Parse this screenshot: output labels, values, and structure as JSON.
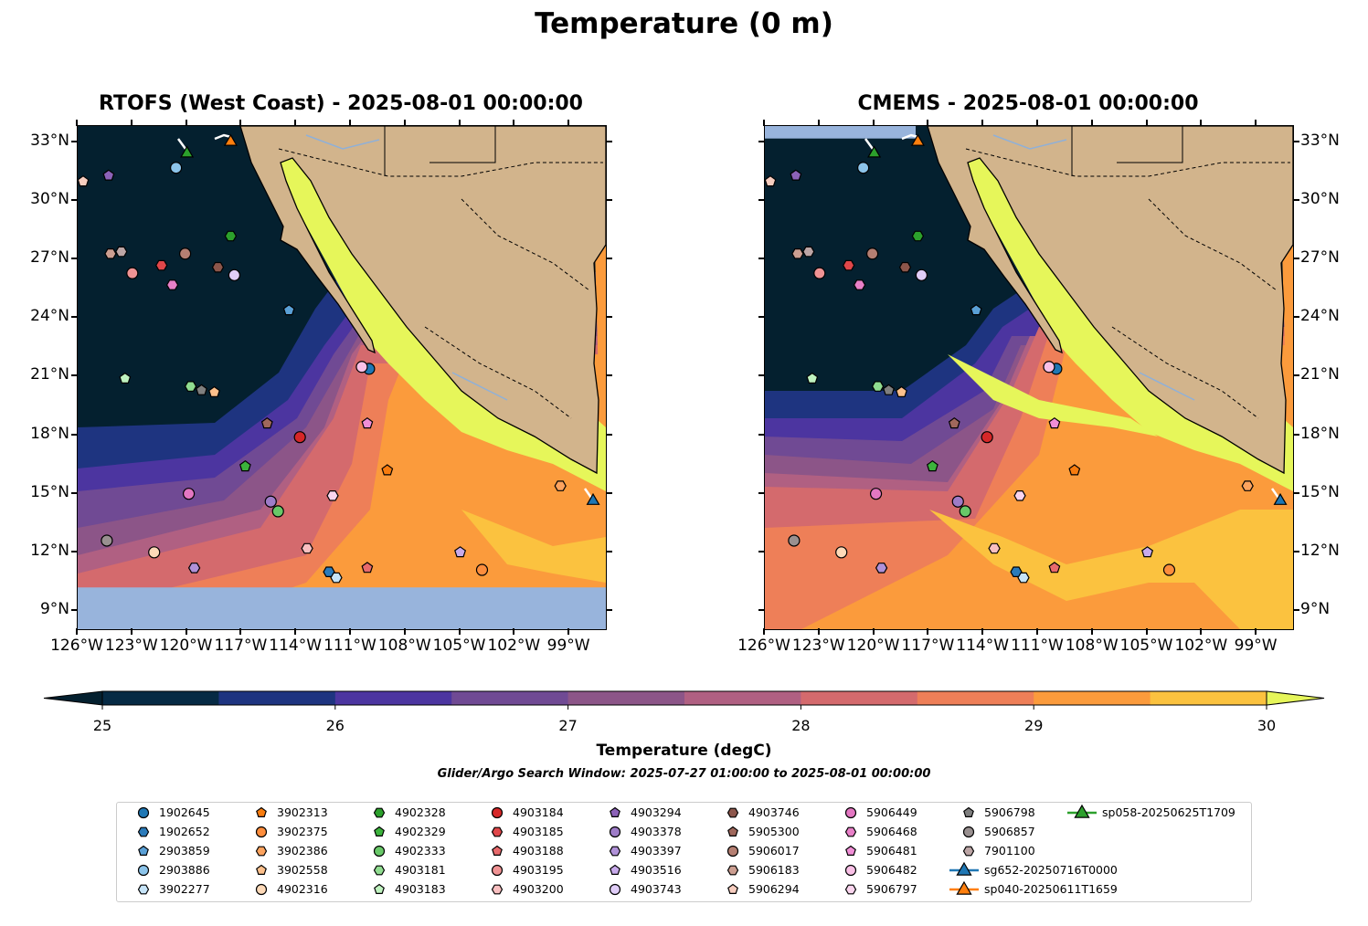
{
  "figure_title": "Temperature (0 m)",
  "chart_data": [
    {
      "type": "heatmap",
      "title": "RTOFS (West Coast) - 2025-08-01 00:00:00",
      "model": "RTOFS"
    },
    {
      "type": "heatmap",
      "title": "CMEMS - 2025-08-01 00:00:00",
      "model": "CMEMS"
    }
  ],
  "axes": {
    "lon_ticks": [
      "126°W",
      "123°W",
      "120°W",
      "117°W",
      "114°W",
      "111°W",
      "108°W",
      "105°W",
      "102°W",
      "99°W"
    ],
    "lon_values": [
      -126,
      -123,
      -120,
      -117,
      -114,
      -111,
      -108,
      -105,
      -102,
      -99
    ],
    "lat_ticks": [
      "9°N",
      "12°N",
      "15°N",
      "18°N",
      "21°N",
      "24°N",
      "27°N",
      "30°N",
      "33°N"
    ],
    "lat_values": [
      9,
      12,
      15,
      18,
      21,
      24,
      27,
      30,
      33
    ],
    "lon_range": [
      -126,
      -97
    ],
    "lat_range": [
      8.06,
      33.84
    ]
  },
  "colorbar": {
    "label": "Temperature (degC)",
    "min": 25,
    "max": 30,
    "ticks": [
      "25",
      "26",
      "27",
      "28",
      "29",
      "30"
    ],
    "tick_values": [
      25,
      26,
      27,
      28,
      29,
      30
    ],
    "colors": [
      "#062a44",
      "#1e3480",
      "#4c35a0",
      "#704a94",
      "#8c5588",
      "#b06082",
      "#d46a6d",
      "#ee7f58",
      "#fb9b3c",
      "#fbc23f"
    ],
    "under": "#04202f",
    "over": "#e6f65a"
  },
  "subtitle": "Glider/Argo Search Window: 2025-07-27 01:00:00 to 2025-08-01 00:00:00",
  "legend": [
    {
      "label": "1902645",
      "color": "#1f77b4",
      "marker": "circle",
      "pos": [
        -110.0,
        21.4
      ]
    },
    {
      "label": "1902652",
      "color": "#2b7bba",
      "marker": "hexagon",
      "pos": [
        -112.2,
        11.0
      ]
    },
    {
      "label": "2903859",
      "color": "#5aa0d6",
      "marker": "pentagon",
      "pos": [
        -114.4,
        24.4
      ]
    },
    {
      "label": "2903886",
      "color": "#8cc4ea",
      "marker": "circle",
      "pos": [
        -120.6,
        31.7
      ]
    },
    {
      "label": "3902277",
      "color": "#c6e4f8",
      "marker": "hexagon",
      "pos": [
        -111.8,
        10.7
      ]
    },
    {
      "label": "3902313",
      "color": "#f87c0e",
      "marker": "pentagon",
      "pos": [
        -109.0,
        16.2
      ]
    },
    {
      "label": "3902375",
      "color": "#fd8d3c",
      "marker": "circle",
      "pos": [
        -103.8,
        11.1
      ]
    },
    {
      "label": "3902386",
      "color": "#fda35e",
      "marker": "hexagon",
      "pos": [
        -99.5,
        15.4
      ]
    },
    {
      "label": "3902558",
      "color": "#fdc08c",
      "marker": "pentagon",
      "pos": [
        -118.5,
        20.2
      ]
    },
    {
      "label": "4902316",
      "color": "#fdd9b8",
      "marker": "circle",
      "pos": [
        -121.8,
        12.0
      ]
    },
    {
      "label": "4902328",
      "color": "#2ca02c",
      "marker": "hexagon",
      "pos": [
        -117.6,
        28.2
      ]
    },
    {
      "label": "4902329",
      "color": "#3cb33c",
      "marker": "pentagon",
      "pos": [
        -116.8,
        16.4
      ]
    },
    {
      "label": "4902333",
      "color": "#68c868",
      "marker": "circle",
      "pos": [
        -115.0,
        14.1
      ]
    },
    {
      "label": "4903181",
      "color": "#90dc90",
      "marker": "hexagon",
      "pos": [
        -119.8,
        20.5
      ]
    },
    {
      "label": "4903183",
      "color": "#bff2bf",
      "marker": "pentagon",
      "pos": [
        -123.4,
        20.9
      ]
    },
    {
      "label": "4903184",
      "color": "#d62728",
      "marker": "circle",
      "pos": [
        -113.8,
        17.9
      ]
    },
    {
      "label": "4903185",
      "color": "#e0474a",
      "marker": "hexagon",
      "pos": [
        -121.4,
        26.7
      ]
    },
    {
      "label": "4903188",
      "color": "#e86a6c",
      "marker": "pentagon",
      "pos": [
        -110.1,
        11.2
      ]
    },
    {
      "label": "4903195",
      "color": "#f09394",
      "marker": "circle",
      "pos": [
        -123.0,
        26.3
      ]
    },
    {
      "label": "4903200",
      "color": "#f8bfc0",
      "marker": "hexagon",
      "pos": [
        -113.4,
        12.2
      ]
    },
    {
      "label": "4903294",
      "color": "#8c62b8",
      "marker": "pentagon",
      "pos": [
        -124.3,
        31.3
      ]
    },
    {
      "label": "4903378",
      "color": "#9e7cc8",
      "marker": "circle",
      "pos": [
        -115.4,
        14.6
      ]
    },
    {
      "label": "4903397",
      "color": "#b091d8",
      "marker": "hexagon",
      "pos": [
        -119.6,
        11.2
      ]
    },
    {
      "label": "4903516",
      "color": "#c8aaeb",
      "marker": "pentagon",
      "pos": [
        -105.0,
        12.0
      ]
    },
    {
      "label": "4903743",
      "color": "#e0cdf8",
      "marker": "circle",
      "pos": [
        -117.4,
        26.2
      ]
    },
    {
      "label": "4903746",
      "color": "#8c564b",
      "marker": "hexagon",
      "pos": [
        -118.3,
        26.6
      ]
    },
    {
      "label": "5905300",
      "color": "#a0685c",
      "marker": "pentagon",
      "pos": [
        -115.6,
        18.6
      ]
    },
    {
      "label": "5906017",
      "color": "#b57f72",
      "marker": "circle",
      "pos": [
        -120.1,
        27.3
      ]
    },
    {
      "label": "5906183",
      "color": "#cc9e91",
      "marker": "hexagon",
      "pos": [
        -124.2,
        27.3
      ]
    },
    {
      "label": "5906294",
      "color": "#f7cdbf",
      "marker": "pentagon",
      "pos": [
        -125.7,
        31.0
      ]
    },
    {
      "label": "5906449",
      "color": "#e377c2",
      "marker": "circle",
      "pos": [
        -119.9,
        15.0
      ]
    },
    {
      "label": "5906468",
      "color": "#e880c8",
      "marker": "hexagon",
      "pos": [
        -120.8,
        25.7
      ]
    },
    {
      "label": "5906481",
      "color": "#f08ed6",
      "marker": "pentagon",
      "pos": [
        -110.1,
        18.6
      ]
    },
    {
      "label": "5906482",
      "color": "#f9c0e6",
      "marker": "circle",
      "pos": [
        -110.4,
        21.5
      ]
    },
    {
      "label": "5906797",
      "color": "#fad5ee",
      "marker": "hexagon",
      "pos": [
        -112.0,
        14.9
      ]
    },
    {
      "label": "5906798",
      "color": "#7f7f7f",
      "marker": "pentagon",
      "pos": [
        -119.2,
        20.3
      ]
    },
    {
      "label": "5906857",
      "color": "#999090",
      "marker": "circle",
      "pos": [
        -124.4,
        12.6
      ]
    },
    {
      "label": "7901100",
      "color": "#bca5a5",
      "marker": "hexagon",
      "pos": [
        -123.6,
        27.4
      ]
    },
    {
      "label": "sg652-20250716T0000",
      "color": "#1f77b4",
      "marker": "triangle",
      "pos": [
        -97.7,
        14.7
      ]
    },
    {
      "label": "sp040-20250611T1659",
      "color": "#ff7f0e",
      "marker": "triangle",
      "pos": [
        -117.6,
        33.1
      ]
    },
    {
      "label": "sp058-20250625T1709",
      "color": "#2ca02c",
      "marker": "triangle",
      "pos": [
        -120.0,
        32.5
      ]
    }
  ]
}
